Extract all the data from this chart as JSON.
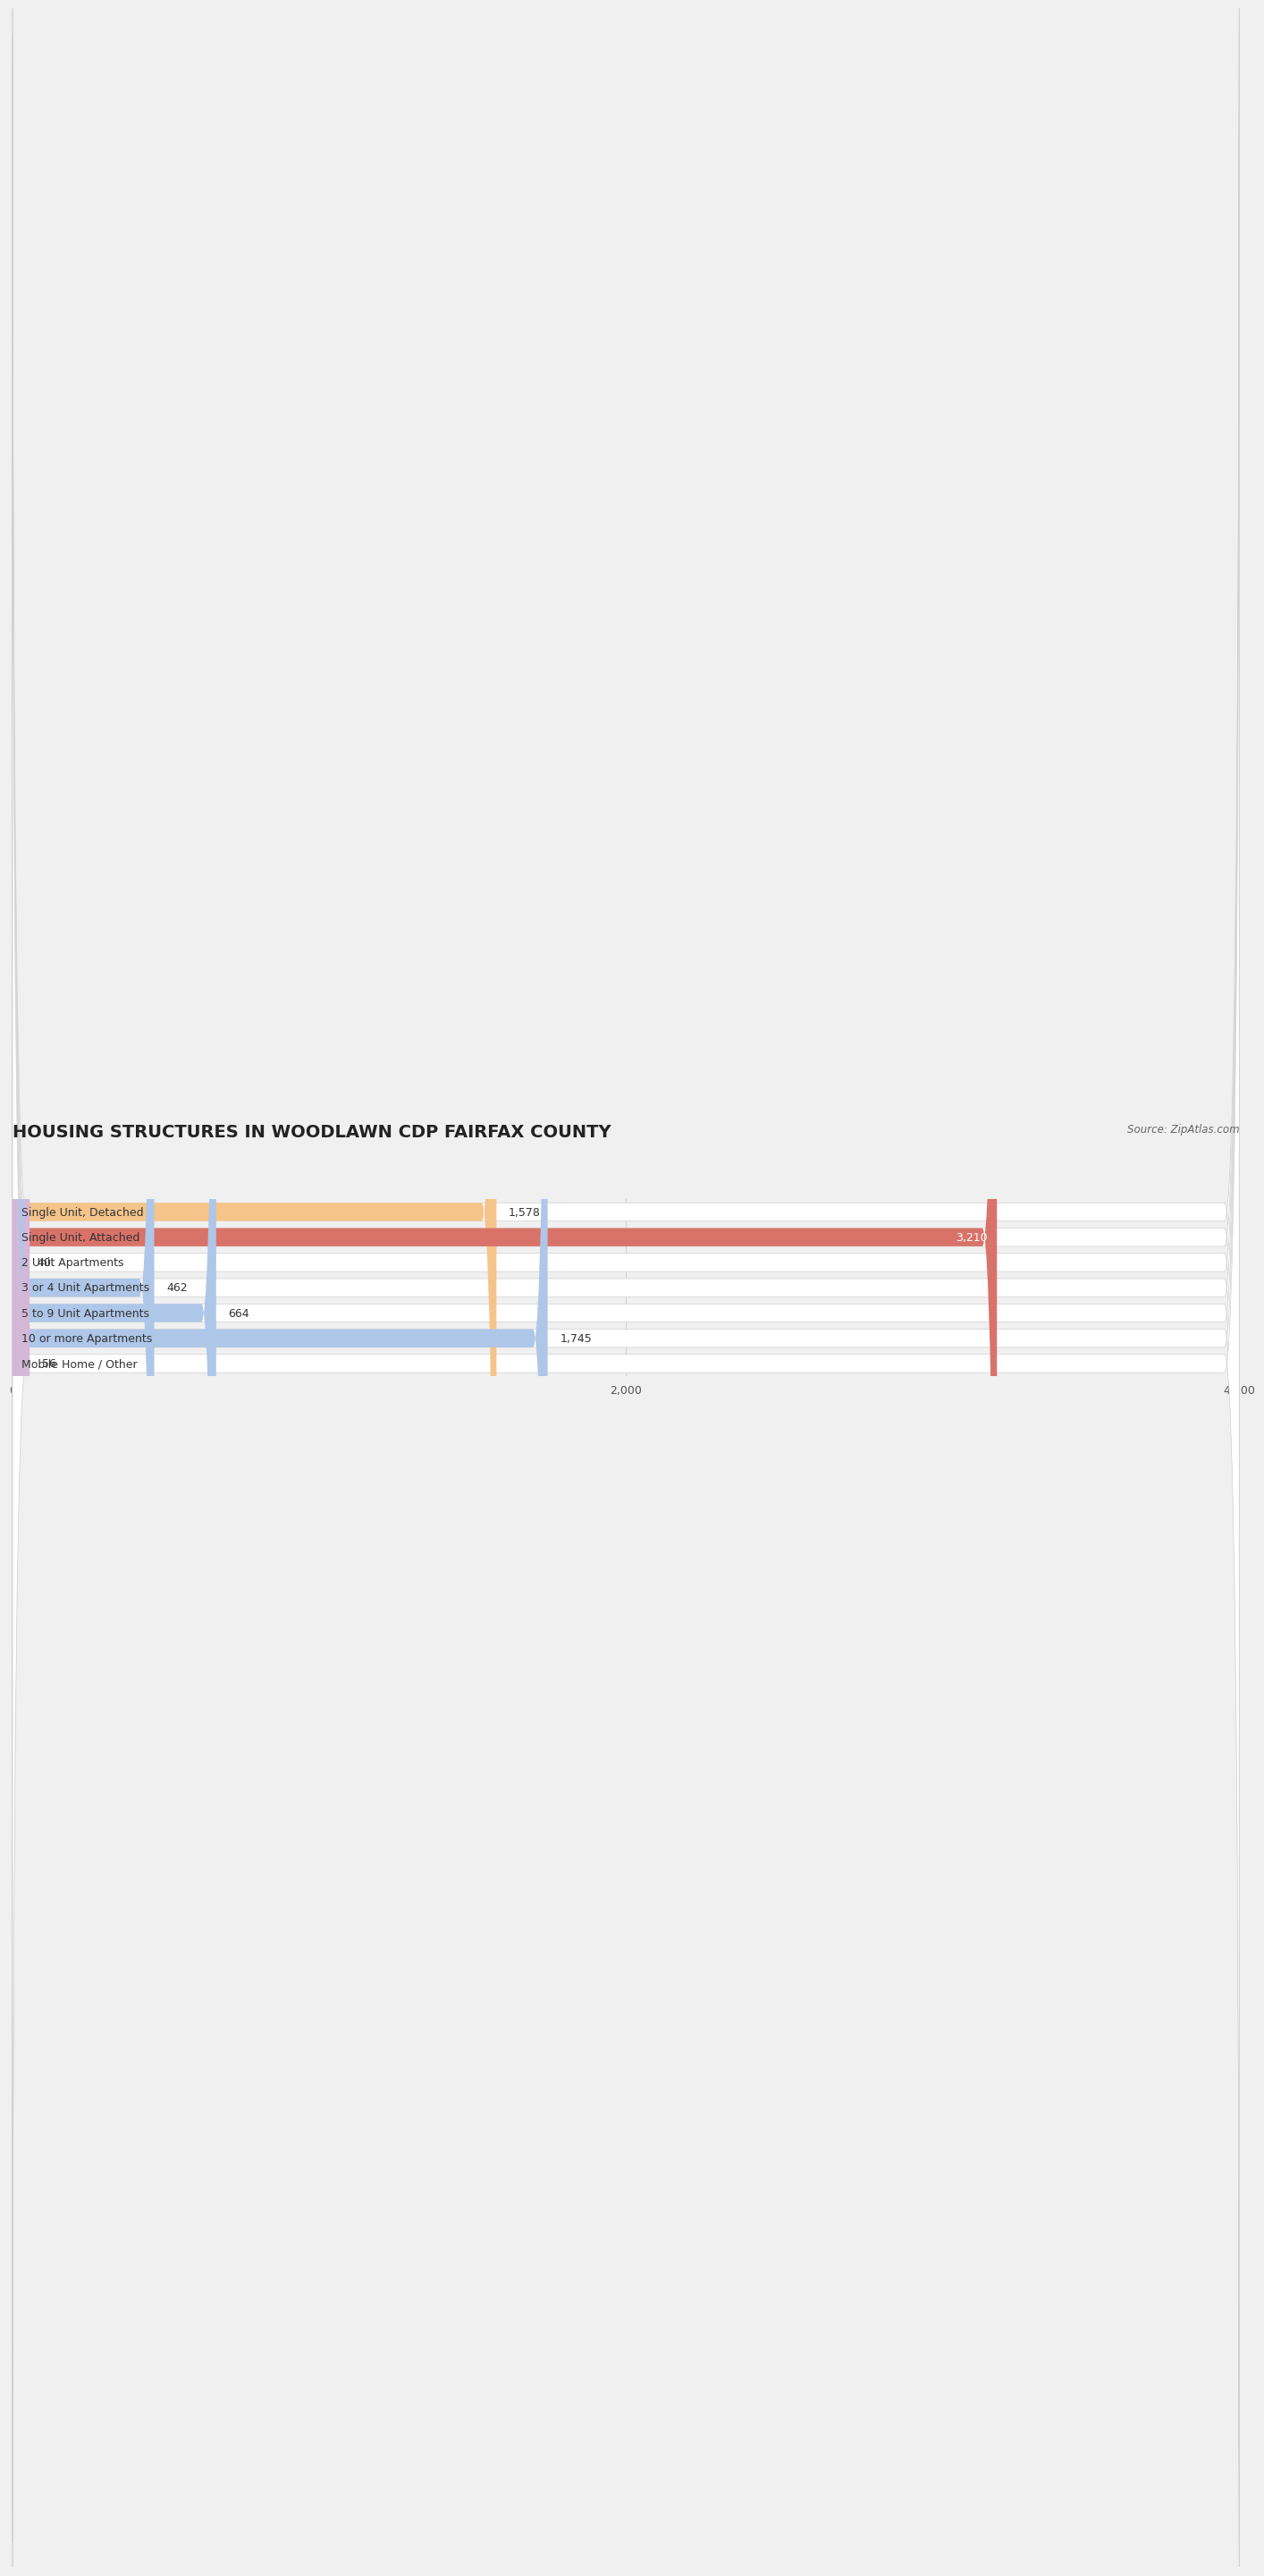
{
  "title": "HOUSING STRUCTURES IN WOODLAWN CDP FAIRFAX COUNTY",
  "source": "Source: ZipAtlas.com",
  "categories": [
    "Single Unit, Detached",
    "Single Unit, Attached",
    "2 Unit Apartments",
    "3 or 4 Unit Apartments",
    "5 to 9 Unit Apartments",
    "10 or more Apartments",
    "Mobile Home / Other"
  ],
  "values": [
    1578,
    3210,
    40,
    462,
    664,
    1745,
    56
  ],
  "colors": [
    "#f5c48a",
    "#d9736a",
    "#aec6e8",
    "#aec6e8",
    "#aec6e8",
    "#aec6e8",
    "#d4b8d8"
  ],
  "value_text_colors": [
    "#333333",
    "#ffffff",
    "#333333",
    "#333333",
    "#333333",
    "#333333",
    "#333333"
  ],
  "xlim": [
    0,
    4000
  ],
  "xticks": [
    0,
    2000,
    4000
  ],
  "bar_height": 0.72,
  "background_color": "#f0f0f0",
  "bar_bg_color": "#ffffff",
  "title_fontsize": 14,
  "label_fontsize": 9,
  "value_fontsize": 9,
  "source_fontsize": 8.5
}
